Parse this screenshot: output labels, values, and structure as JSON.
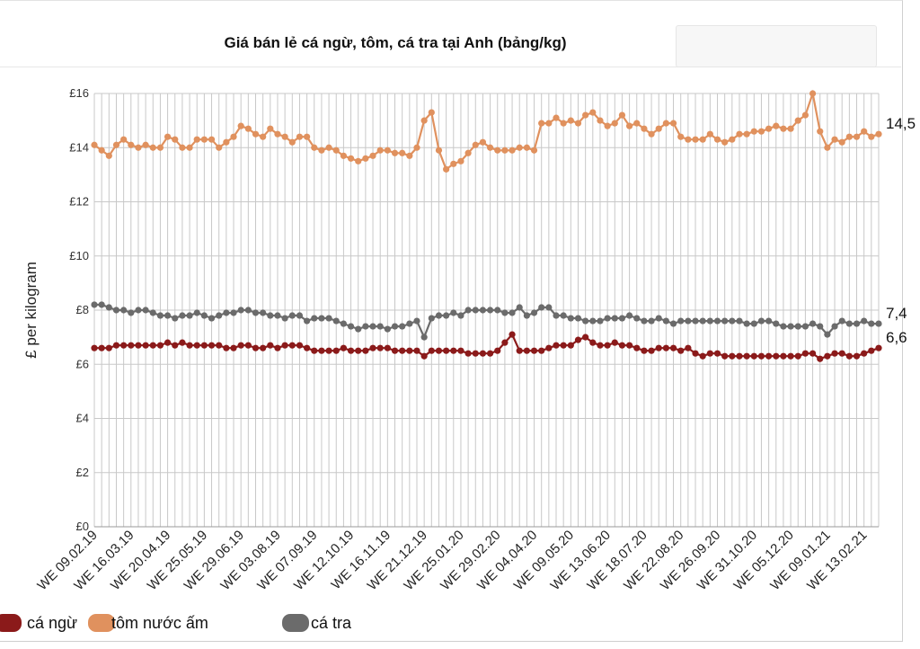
{
  "chart_data": {
    "type": "line",
    "title": "Giá bán lẻ cá ngừ, tôm, cá tra tại Anh (bảng/kg)",
    "ylabel": "£ per kilogram",
    "xlabel": "",
    "ylim": [
      0,
      16
    ],
    "yticks": [
      "£0",
      "£2",
      "£4",
      "£6",
      "£8",
      "£10",
      "£12",
      "£14",
      "£16"
    ],
    "grid": true,
    "legend_position": "bottom-left",
    "x_tick_labels": [
      "WE 09.02.19",
      "WE 16.03.19",
      "WE 20.04.19",
      "WE 25.05.19",
      "WE 29.06.19",
      "WE 03.08.19",
      "WE 07.09.19",
      "WE 12.10.19",
      "WE 16.11.19",
      "WE 21.12.19",
      "WE 25.01.20",
      "WE 29.02.20",
      "WE 04.04.20",
      "WE 09.05.20",
      "WE 13.06.20",
      "WE 18.07.20",
      "WE 22.08.20",
      "WE 26.09.20",
      "WE 31.10.20",
      "WE 05.12.20",
      "WE 09.01.21",
      "WE 13.02.21"
    ],
    "series": [
      {
        "name": "tôm nước ấm",
        "color": "#E0915E",
        "end_label": "14,5",
        "values": [
          14.1,
          13.9,
          13.7,
          14.1,
          14.3,
          14.1,
          14.0,
          14.1,
          14.0,
          14.0,
          14.4,
          14.3,
          14.0,
          14.0,
          14.3,
          14.3,
          14.3,
          14.0,
          14.2,
          14.4,
          14.8,
          14.7,
          14.5,
          14.4,
          14.7,
          14.5,
          14.4,
          14.2,
          14.4,
          14.4,
          14.0,
          13.9,
          14.0,
          13.9,
          13.7,
          13.6,
          13.5,
          13.6,
          13.7,
          13.9,
          13.9,
          13.8,
          13.8,
          13.7,
          14.0,
          15.0,
          15.3,
          13.9,
          13.2,
          13.4,
          13.5,
          13.8,
          14.1,
          14.2,
          14.0,
          13.9,
          13.9,
          13.9,
          14.0,
          14.0,
          13.9,
          14.9,
          14.9,
          15.1,
          14.9,
          15.0,
          14.9,
          15.2,
          15.3,
          15.0,
          14.8,
          14.9,
          15.2,
          14.8,
          14.9,
          14.7,
          14.5,
          14.7,
          14.9,
          14.9,
          14.4,
          14.3,
          14.3,
          14.3,
          14.5,
          14.3,
          14.2,
          14.3,
          14.5,
          14.5,
          14.6,
          14.6,
          14.7,
          14.8,
          14.7,
          14.7,
          15.0,
          15.2,
          16.0,
          14.6,
          14.0,
          14.3,
          14.2,
          14.4,
          14.4,
          14.6,
          14.4,
          14.5
        ]
      },
      {
        "name": "cá tra",
        "color": "#6b6b6b",
        "end_label": "7,4",
        "values": [
          8.2,
          8.2,
          8.1,
          8.0,
          8.0,
          7.9,
          8.0,
          8.0,
          7.9,
          7.8,
          7.8,
          7.7,
          7.8,
          7.8,
          7.9,
          7.8,
          7.7,
          7.8,
          7.9,
          7.9,
          8.0,
          8.0,
          7.9,
          7.9,
          7.8,
          7.8,
          7.7,
          7.8,
          7.8,
          7.6,
          7.7,
          7.7,
          7.7,
          7.6,
          7.5,
          7.4,
          7.3,
          7.4,
          7.4,
          7.4,
          7.3,
          7.4,
          7.4,
          7.5,
          7.6,
          7.0,
          7.7,
          7.8,
          7.8,
          7.9,
          7.8,
          8.0,
          8.0,
          8.0,
          8.0,
          8.0,
          7.9,
          7.9,
          8.1,
          7.8,
          7.9,
          8.1,
          8.1,
          7.8,
          7.8,
          7.7,
          7.7,
          7.6,
          7.6,
          7.6,
          7.7,
          7.7,
          7.7,
          7.8,
          7.7,
          7.6,
          7.6,
          7.7,
          7.6,
          7.5,
          7.6,
          7.6,
          7.6,
          7.6,
          7.6,
          7.6,
          7.6,
          7.6,
          7.6,
          7.5,
          7.5,
          7.6,
          7.6,
          7.5,
          7.4,
          7.4,
          7.4,
          7.4,
          7.5,
          7.4,
          7.1,
          7.4,
          7.6,
          7.5,
          7.5,
          7.6,
          7.5,
          7.5
        ]
      },
      {
        "name": "cá ngừ",
        "color": "#8B1A1A",
        "end_label": "6,6",
        "values": [
          6.6,
          6.6,
          6.6,
          6.7,
          6.7,
          6.7,
          6.7,
          6.7,
          6.7,
          6.7,
          6.8,
          6.7,
          6.8,
          6.7,
          6.7,
          6.7,
          6.7,
          6.7,
          6.6,
          6.6,
          6.7,
          6.7,
          6.6,
          6.6,
          6.7,
          6.6,
          6.7,
          6.7,
          6.7,
          6.6,
          6.5,
          6.5,
          6.5,
          6.5,
          6.6,
          6.5,
          6.5,
          6.5,
          6.6,
          6.6,
          6.6,
          6.5,
          6.5,
          6.5,
          6.5,
          6.3,
          6.5,
          6.5,
          6.5,
          6.5,
          6.5,
          6.4,
          6.4,
          6.4,
          6.4,
          6.5,
          6.8,
          7.1,
          6.5,
          6.5,
          6.5,
          6.5,
          6.6,
          6.7,
          6.7,
          6.7,
          6.9,
          7.0,
          6.8,
          6.7,
          6.7,
          6.8,
          6.7,
          6.7,
          6.6,
          6.5,
          6.5,
          6.6,
          6.6,
          6.6,
          6.5,
          6.6,
          6.4,
          6.3,
          6.4,
          6.4,
          6.3,
          6.3,
          6.3,
          6.3,
          6.3,
          6.3,
          6.3,
          6.3,
          6.3,
          6.3,
          6.3,
          6.4,
          6.4,
          6.2,
          6.3,
          6.4,
          6.4,
          6.3,
          6.3,
          6.4,
          6.5,
          6.6
        ]
      }
    ]
  },
  "legend": [
    {
      "label": "cá ngừ",
      "color": "#8B1A1A"
    },
    {
      "label": "tôm nước ấm",
      "color": "#E0915E"
    },
    {
      "label": "cá tra",
      "color": "#6b6b6b"
    }
  ]
}
